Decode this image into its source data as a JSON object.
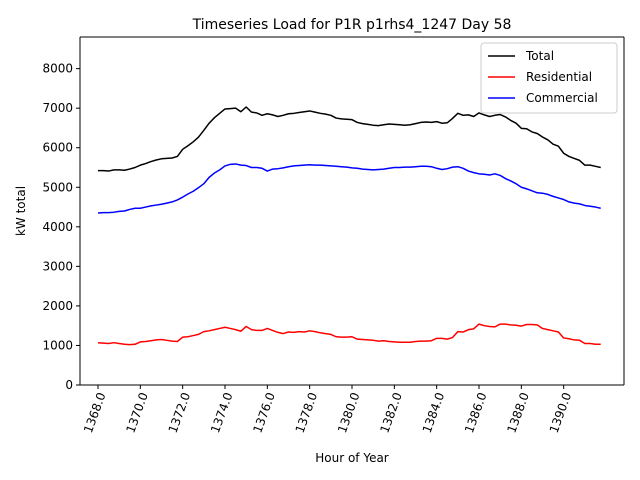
{
  "chart_data": {
    "type": "line",
    "title": "Timeseries Load for P1R p1rhs4_1247  Day 58",
    "xlabel": "Hour of Year",
    "ylabel": "kW total",
    "xlim": [
      1367.15,
      1392.85
    ],
    "ylim": [
      0,
      8800
    ],
    "grid": false,
    "legend_position": "top-right",
    "xticks": [
      1368,
      1370,
      1372,
      1374,
      1376,
      1378,
      1380,
      1382,
      1384,
      1386,
      1388,
      1390
    ],
    "xtick_labels": [
      "1368.0",
      "1370.0",
      "1372.0",
      "1374.0",
      "1376.0",
      "1378.0",
      "1380.0",
      "1382.0",
      "1384.0",
      "1386.0",
      "1388.0",
      "1390.0"
    ],
    "yticks": [
      0,
      1000,
      2000,
      3000,
      4000,
      5000,
      6000,
      7000,
      8000
    ],
    "ytick_labels": [
      "0",
      "1000",
      "2000",
      "3000",
      "4000",
      "5000",
      "6000",
      "7000",
      "8000"
    ],
    "x": [
      1368.0,
      1368.25,
      1368.5,
      1368.75,
      1369.0,
      1369.25,
      1369.5,
      1369.75,
      1370.0,
      1370.25,
      1370.5,
      1370.75,
      1371.0,
      1371.25,
      1371.5,
      1371.75,
      1372.0,
      1372.25,
      1372.5,
      1372.75,
      1373.0,
      1373.25,
      1373.5,
      1373.75,
      1374.0,
      1374.25,
      1374.5,
      1374.75,
      1375.0,
      1375.25,
      1375.5,
      1375.75,
      1376.0,
      1376.25,
      1376.5,
      1376.75,
      1377.0,
      1377.25,
      1377.5,
      1377.75,
      1378.0,
      1378.25,
      1378.5,
      1378.75,
      1379.0,
      1379.25,
      1379.5,
      1379.75,
      1380.0,
      1380.25,
      1380.5,
      1380.75,
      1381.0,
      1381.25,
      1381.5,
      1381.75,
      1382.0,
      1382.25,
      1382.5,
      1382.75,
      1383.0,
      1383.25,
      1383.5,
      1383.75,
      1384.0,
      1384.25,
      1384.5,
      1384.75,
      1385.0,
      1385.25,
      1385.5,
      1385.75,
      1386.0,
      1386.25,
      1386.5,
      1386.75,
      1387.0,
      1387.25,
      1387.5,
      1387.75,
      1388.0,
      1388.25,
      1388.5,
      1388.75,
      1389.0,
      1389.25,
      1389.5,
      1389.75,
      1390.0,
      1390.25,
      1390.5,
      1390.75,
      1391.0,
      1391.25,
      1391.5,
      1391.75
    ],
    "series": [
      {
        "name": "Total",
        "color": "#000000",
        "values": [
          5420,
          5420,
          5410,
          5440,
          5440,
          5430,
          5460,
          5500,
          5560,
          5600,
          5650,
          5690,
          5720,
          5730,
          5740,
          5780,
          5960,
          6050,
          6150,
          6270,
          6440,
          6620,
          6760,
          6870,
          6980,
          6990,
          7000,
          6910,
          7030,
          6900,
          6880,
          6820,
          6860,
          6830,
          6790,
          6820,
          6860,
          6870,
          6890,
          6910,
          6930,
          6900,
          6870,
          6850,
          6820,
          6750,
          6730,
          6720,
          6710,
          6640,
          6610,
          6590,
          6570,
          6560,
          6580,
          6600,
          6590,
          6580,
          6570,
          6580,
          6610,
          6640,
          6650,
          6640,
          6660,
          6620,
          6630,
          6740,
          6870,
          6820,
          6830,
          6790,
          6880,
          6830,
          6790,
          6820,
          6840,
          6780,
          6690,
          6620,
          6490,
          6480,
          6400,
          6360,
          6270,
          6200,
          6090,
          6040,
          5860,
          5780,
          5730,
          5680,
          5560,
          5560,
          5530,
          5500
        ]
      },
      {
        "name": "Residential",
        "color": "#ff0000",
        "values": [
          1070,
          1060,
          1050,
          1070,
          1050,
          1030,
          1020,
          1030,
          1090,
          1100,
          1120,
          1140,
          1150,
          1130,
          1110,
          1100,
          1210,
          1220,
          1250,
          1280,
          1350,
          1370,
          1400,
          1430,
          1460,
          1430,
          1400,
          1360,
          1480,
          1400,
          1380,
          1380,
          1430,
          1380,
          1330,
          1300,
          1340,
          1330,
          1350,
          1340,
          1370,
          1350,
          1320,
          1300,
          1280,
          1220,
          1210,
          1210,
          1220,
          1160,
          1150,
          1140,
          1130,
          1110,
          1120,
          1100,
          1090,
          1080,
          1080,
          1080,
          1100,
          1110,
          1110,
          1120,
          1180,
          1180,
          1160,
          1200,
          1350,
          1340,
          1400,
          1420,
          1540,
          1500,
          1480,
          1470,
          1540,
          1540,
          1520,
          1510,
          1490,
          1530,
          1530,
          1520,
          1430,
          1400,
          1370,
          1340,
          1190,
          1170,
          1140,
          1130,
          1050,
          1050,
          1030,
          1030
        ]
      },
      {
        "name": "Commercial",
        "color": "#0000ff",
        "values": [
          4350,
          4360,
          4360,
          4370,
          4390,
          4400,
          4440,
          4470,
          4470,
          4500,
          4530,
          4550,
          4570,
          4600,
          4630,
          4680,
          4750,
          4830,
          4900,
          4990,
          5090,
          5250,
          5360,
          5440,
          5540,
          5580,
          5590,
          5560,
          5550,
          5500,
          5500,
          5480,
          5410,
          5460,
          5470,
          5490,
          5520,
          5540,
          5550,
          5560,
          5570,
          5560,
          5560,
          5550,
          5540,
          5530,
          5520,
          5510,
          5490,
          5480,
          5460,
          5450,
          5440,
          5450,
          5460,
          5480,
          5500,
          5500,
          5510,
          5510,
          5520,
          5530,
          5530,
          5520,
          5480,
          5450,
          5470,
          5510,
          5520,
          5480,
          5410,
          5370,
          5340,
          5330,
          5310,
          5340,
          5300,
          5220,
          5160,
          5090,
          5000,
          4960,
          4910,
          4860,
          4850,
          4820,
          4770,
          4730,
          4690,
          4630,
          4600,
          4580,
          4540,
          4520,
          4500,
          4470
        ]
      }
    ]
  }
}
